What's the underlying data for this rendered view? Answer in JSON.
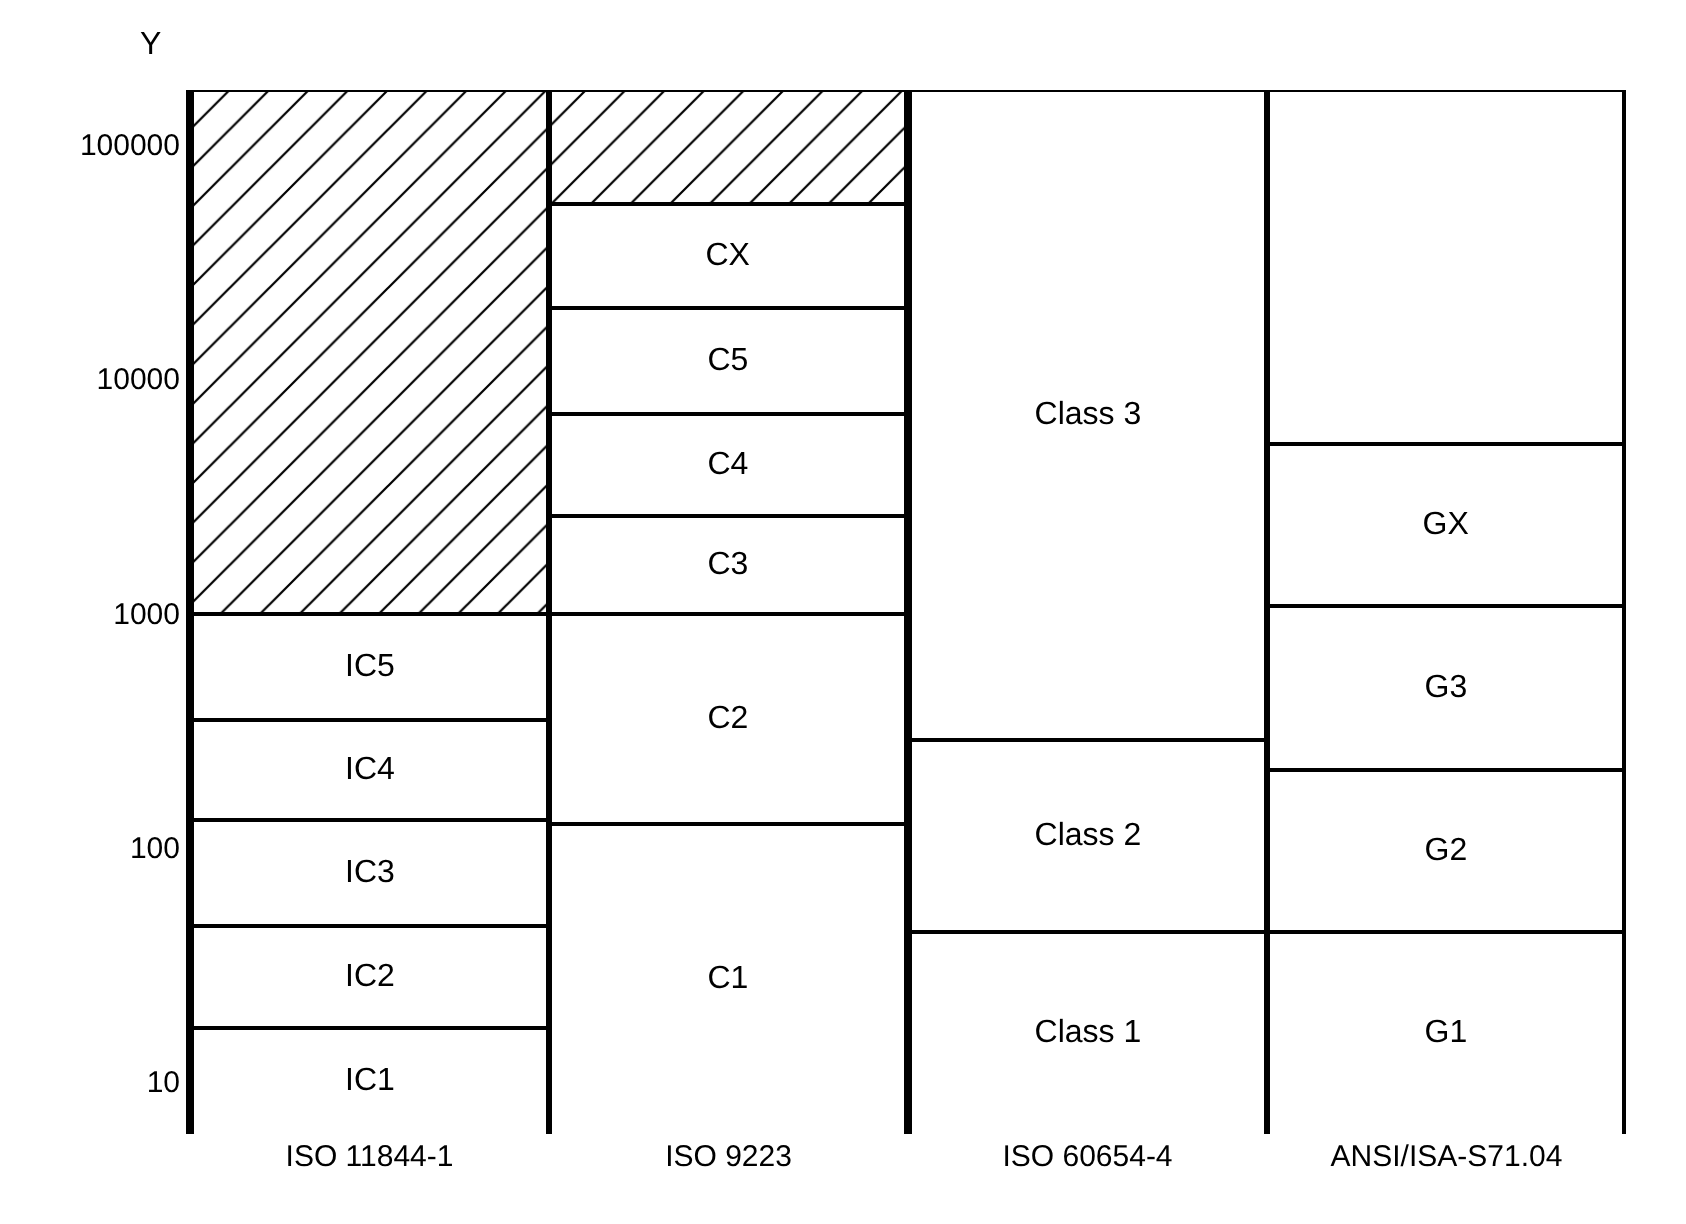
{
  "chart_data": {
    "type": "bar",
    "stacked": true,
    "ylabel": "Y",
    "log": true,
    "legend": false,
    "categories": [
      "ISO 11844-1",
      "ISO 9223",
      "ISO 60654-4",
      "ANSI/ISA-S71.04"
    ],
    "ylim": [
      6,
      170000
    ],
    "yticks": [
      10,
      100,
      1000,
      10000,
      100000
    ],
    "series": [
      {
        "color": "#ffffff",
        "values": [
          17,
          125,
          44,
          44
        ],
        "value_labels": [
          "IC1",
          "C1",
          "Class 1",
          "G1"
        ]
      },
      {
        "color": "#ffffff",
        "values": [
          29,
          875,
          246,
          171
        ],
        "value_labels": [
          "IC2",
          "C2",
          "Class 2",
          "G2"
        ]
      },
      {
        "color": "#ffffff",
        "values": [
          84,
          1600,
          169710,
          855
        ],
        "value_labels": [
          "IC3",
          "C3",
          "Class 3",
          "G3"
        ]
      },
      {
        "color": "#ffffff",
        "values": [
          220,
          4500,
          null,
          4230
        ],
        "value_labels": [
          "IC4",
          "C4",
          null,
          "GX"
        ]
      },
      {
        "color": "#ffffff",
        "values": [
          650,
          12900,
          null,
          164700
        ],
        "value_labels": [
          "IC5",
          "C5",
          null,
          null
        ]
      },
      {
        "color": "#ffffff",
        "values": [
          null,
          36000,
          null,
          null
        ],
        "value_labels": [
          null,
          "CX",
          null,
          null
        ]
      },
      {
        "color": "#000000",
        "values": [
          169000,
          114000,
          null,
          null
        ],
        "value_labels": [
          null,
          null,
          null,
          null
        ]
      }
    ]
  }
}
